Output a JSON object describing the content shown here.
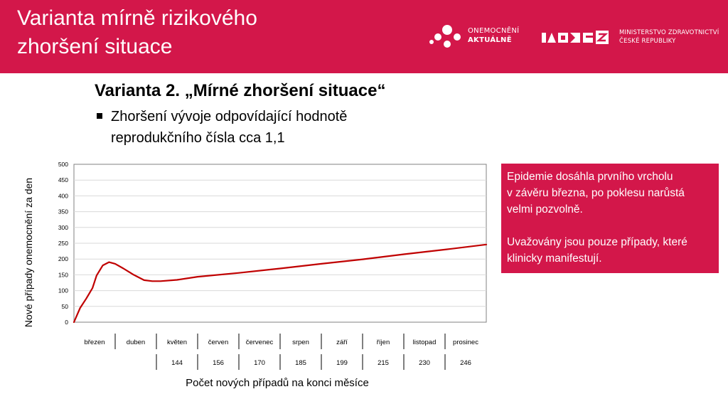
{
  "header": {
    "title_line1": "Varianta mírně rizikového",
    "title_line2": "zhoršení situace",
    "bg_color": "#d3174a",
    "logo_left": {
      "line1": "ONEMOCNĚNÍ",
      "line2": "AKTUÁLNĚ",
      "icon": "dots-logo-icon"
    },
    "logo_right": {
      "line1": "MINISTERSTVO ZDRAVOTNICTVÍ",
      "line2": "ČESKÉ REPUBLIKY",
      "icon": "mzcr-logo-icon"
    }
  },
  "subtitle": "Varianta 2. „Mírné zhoršení situace“",
  "bullet": {
    "line1": "Zhoršení vývoje odpovídající hodnotě",
    "line2": "reprodukčního čísla cca 1,1"
  },
  "infobox": {
    "p1_line1": "Epidemie dosáhla prvního vrcholu",
    "p1_line2": "v závěru března, po poklesu narůstá",
    "p1_line3": "velmi pozvolně.",
    "p2_line1": "Uvažovány jsou pouze případy, které",
    "p2_line2": "klinicky manifestují."
  },
  "chart_data": {
    "type": "line",
    "ylabel": "Nové případy onemocnění za den",
    "xlabel": "Počet nových případů na konci měsíce",
    "ylim": [
      0,
      500
    ],
    "yticks": [
      0,
      50,
      100,
      150,
      200,
      250,
      300,
      350,
      400,
      450,
      500
    ],
    "grid": true,
    "months": [
      "březen",
      "duben",
      "květen",
      "červen",
      "červenec",
      "srpen",
      "září",
      "říjen",
      "listopad",
      "prosinec"
    ],
    "month_end_values": [
      "",
      "",
      "144",
      "156",
      "170",
      "185",
      "199",
      "215",
      "230",
      "246"
    ],
    "series": [
      {
        "color": "#c00000",
        "x": [
          0,
          0.05,
          0.15,
          0.3,
          0.45,
          0.55,
          0.7,
          0.85,
          1.0,
          1.2,
          1.45,
          1.7,
          1.9,
          2.1,
          2.5,
          3.0,
          4.0,
          5.0,
          6.0,
          7.0,
          8.0,
          9.0,
          10.0
        ],
        "y": [
          0,
          15,
          45,
          75,
          108,
          148,
          180,
          190,
          185,
          170,
          150,
          133,
          130,
          130,
          134,
          144,
          156,
          170,
          185,
          199,
          215,
          230,
          246
        ]
      }
    ]
  }
}
